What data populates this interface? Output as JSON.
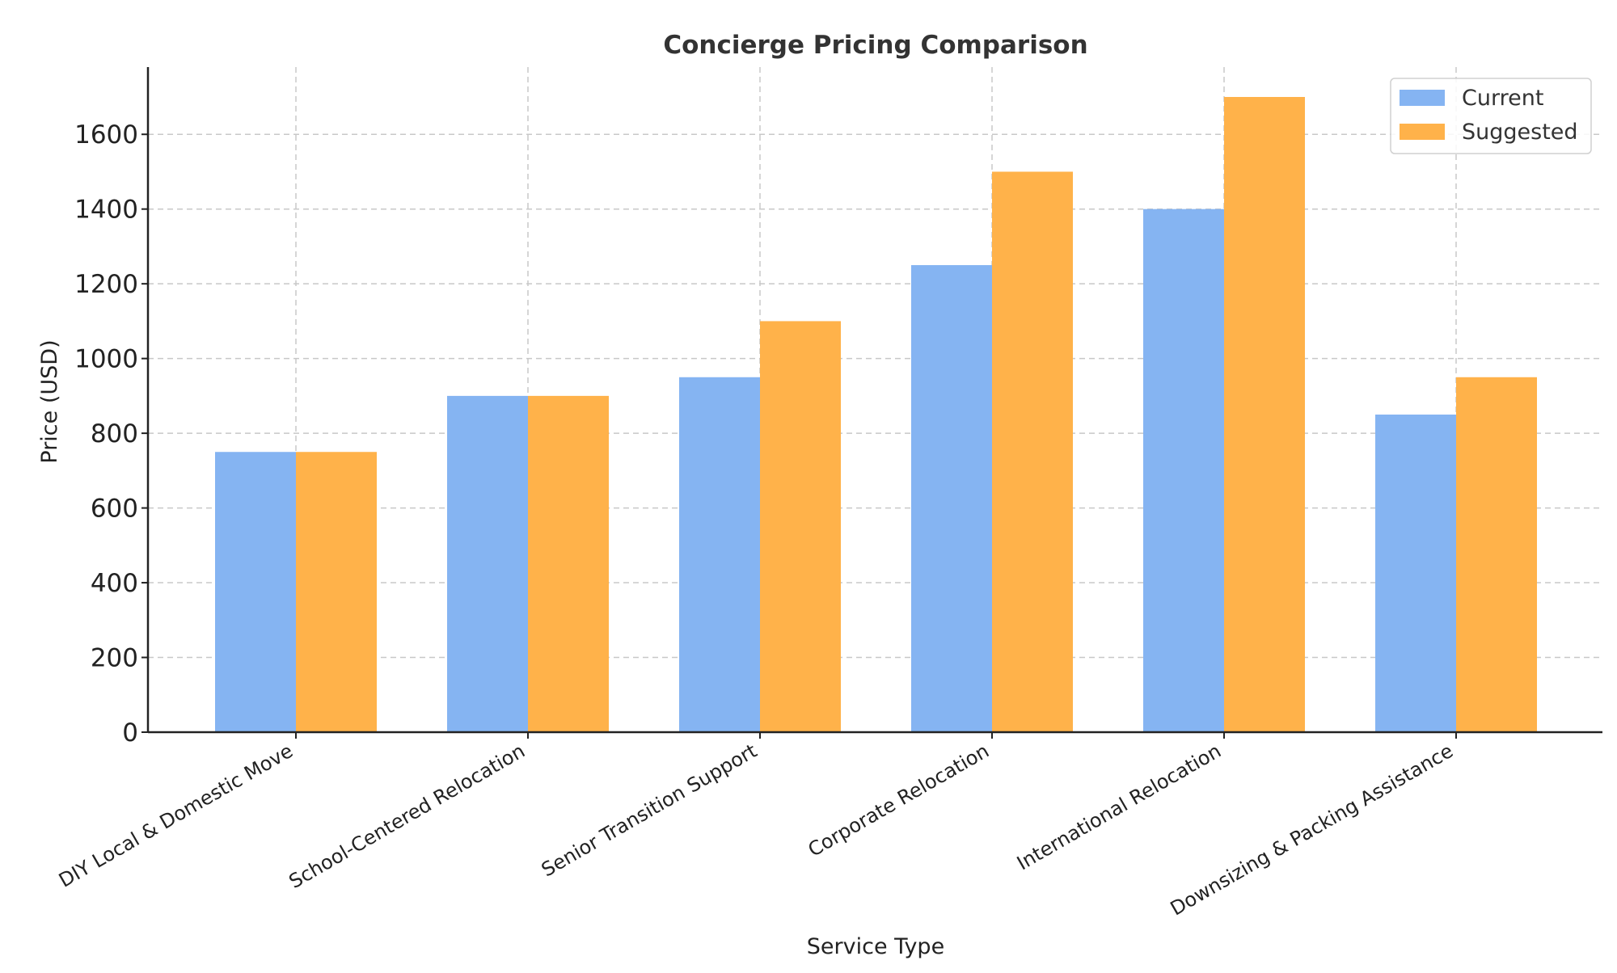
{
  "chart_data": {
    "type": "bar",
    "title": "Concierge Pricing Comparison",
    "xlabel": "Service Type",
    "ylabel": "Price (USD)",
    "categories": [
      "DIY Local & Domestic Move",
      "School-Centered Relocation",
      "Senior Transition Support",
      "Corporate Relocation",
      "International Relocation",
      "Downsizing & Packing Assistance"
    ],
    "series": [
      {
        "name": "Current",
        "color": "#85b4f2",
        "values": [
          750,
          900,
          950,
          1250,
          1400,
          850
        ]
      },
      {
        "name": "Suggested",
        "color": "#ffb24a",
        "values": [
          750,
          900,
          1100,
          1500,
          1700,
          950
        ]
      }
    ],
    "ylim": [
      0,
      1780
    ],
    "yticks": [
      "0",
      "200",
      "400",
      "600",
      "800",
      "1000",
      "1200",
      "1400",
      "1600"
    ],
    "grid": true,
    "legend_position": "top-right"
  }
}
